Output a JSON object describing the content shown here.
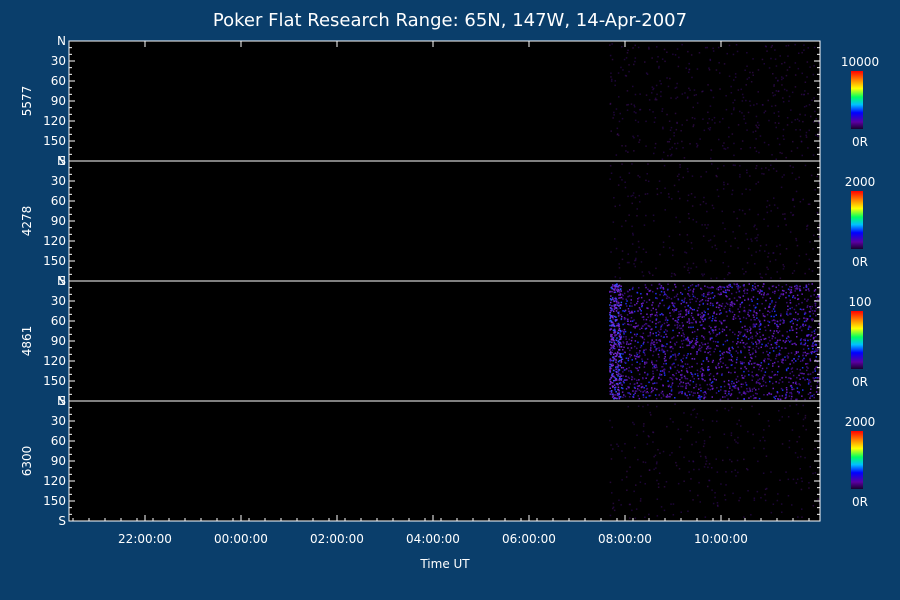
{
  "colors": {
    "background": "#0a3e6b",
    "panel_fill": "#000000",
    "axis": "#ffffff",
    "data_speckle": "#5a1eb4"
  },
  "chart_data": {
    "type": "heatmap",
    "title": "Poker Flat Research Range: 65N, 147W, 14-Apr-2007",
    "xlabel": "Time UT",
    "x_tick_labels": [
      "22:00:00",
      "00:00:00",
      "02:00:00",
      "04:00:00",
      "06:00:00",
      "08:00:00",
      "10:00:00"
    ],
    "y_tick_labels": [
      "N",
      "30",
      "60",
      "90",
      "120",
      "150",
      "S"
    ],
    "y_ticks": [
      0,
      30,
      60,
      90,
      120,
      150,
      180
    ],
    "colorscale": "rainbow",
    "panels": [
      {
        "channel": "5577",
        "cbar_max": "10000",
        "cbar_min": "0R",
        "data_start": "07:40:00",
        "intensity": 0.12
      },
      {
        "channel": "4278",
        "cbar_max": "2000",
        "cbar_min": "0R",
        "data_start": "07:40:00",
        "intensity": 0.08
      },
      {
        "channel": "4861",
        "cbar_max": "100",
        "cbar_min": "0R",
        "data_start": "07:40:00",
        "intensity": 0.75
      },
      {
        "channel": "6300",
        "cbar_max": "2000",
        "cbar_min": "0R",
        "data_start": "07:40:00",
        "intensity": 0.06
      }
    ]
  }
}
